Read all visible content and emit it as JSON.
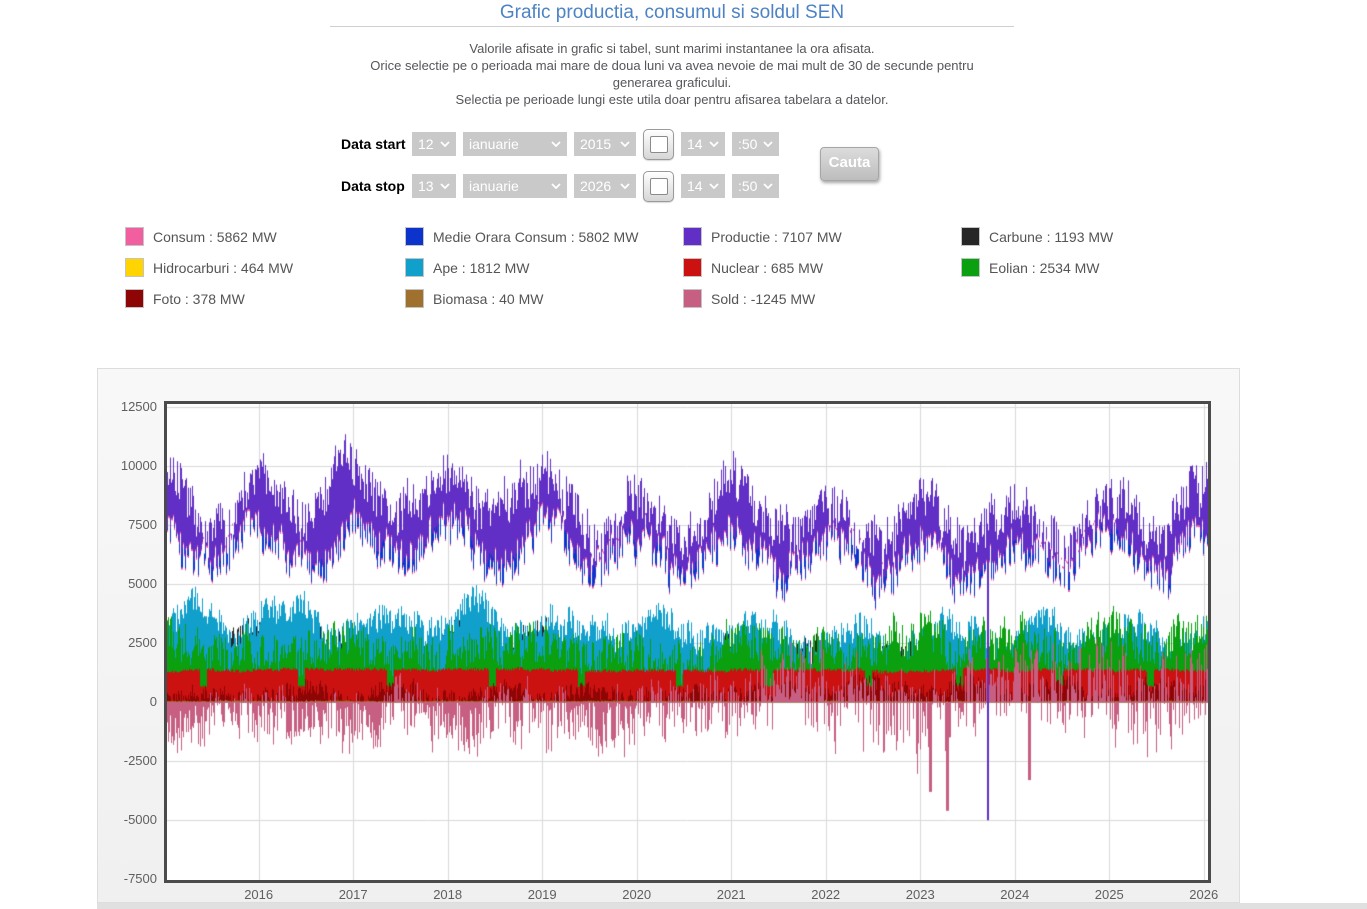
{
  "page": {
    "title": "Grafic productia, consumul si soldul SEN",
    "description_lines": [
      "Valorile afisate in grafic si tabel, sunt marimi instantanee la ora afisata.",
      "Orice selectie pe o perioada mai mare de doua luni va avea nevoie de mai mult de 30 de secunde pentru generarea graficului.",
      "Selectia pe perioade lungi este utila doar pentru afisarea tabelara a datelor."
    ]
  },
  "form": {
    "start_label": "Data start",
    "stop_label": "Data stop",
    "search_label": "Cauta",
    "start": {
      "day": "12",
      "month": "ianuarie",
      "year": "2015",
      "hour": "14",
      "minute": ":50"
    },
    "stop": {
      "day": "13",
      "month": "ianuarie",
      "year": "2026",
      "hour": "14",
      "minute": ":50"
    }
  },
  "chart_data": {
    "type": "area",
    "unit": "MW",
    "legend_position": "top",
    "grid": true,
    "x_range": [
      2015.03,
      2026.045
    ],
    "y_range": [
      -7530,
      12620
    ],
    "y_ticks": [
      12500,
      10000,
      7500,
      5000,
      2500,
      0,
      -2500,
      -5000,
      -7500
    ],
    "x_ticks": [
      2016,
      2017,
      2018,
      2019,
      2020,
      2021,
      2022,
      2023,
      2024,
      2025,
      2026
    ],
    "series": [
      {
        "name": "Consum",
        "color": "#F25FA0",
        "value_mw": 5862
      },
      {
        "name": "Medie Orara Consum",
        "color": "#0C34CC",
        "value_mw": 5802
      },
      {
        "name": "Productie",
        "color": "#612EC6",
        "value_mw": 7107
      },
      {
        "name": "Carbune",
        "color": "#262626",
        "value_mw": 1193
      },
      {
        "name": "Hidrocarburi",
        "color": "#FFD400",
        "value_mw": 464
      },
      {
        "name": "Ape",
        "color": "#119FCC",
        "value_mw": 1812
      },
      {
        "name": "Nuclear",
        "color": "#CC1111",
        "value_mw": 685
      },
      {
        "name": "Eolian",
        "color": "#0AA00F",
        "value_mw": 2534
      },
      {
        "name": "Foto",
        "color": "#8E0505",
        "value_mw": 378
      },
      {
        "name": "Biomasa",
        "color": "#A0702F",
        "value_mw": 40
      },
      {
        "name": "Sold",
        "color": "#C75F82",
        "value_mw": -1245
      }
    ],
    "render": {
      "seed": 20150112,
      "layers": {
        "consum": {
          "base": [
            [
              2015,
              6500
            ],
            [
              2017,
              6700
            ],
            [
              2019,
              6500
            ],
            [
              2020,
              6200
            ],
            [
              2021,
              6400
            ],
            [
              2022,
              6100
            ],
            [
              2023,
              5900
            ],
            [
              2024,
              6000
            ],
            [
              2025,
              6100
            ],
            [
              2026.1,
              6300
            ]
          ],
          "seasonal": 800,
          "phase": 0.02,
          "fast": 850,
          "slow": 420
        },
        "medie": {
          "fast": 240
        },
        "productie": {
          "base": [
            [
              2015,
              8300
            ],
            [
              2016,
              8600
            ],
            [
              2017,
              8900
            ],
            [
              2018,
              8900
            ],
            [
              2019,
              8500
            ],
            [
              2020,
              7900
            ],
            [
              2021,
              8300
            ],
            [
              2022,
              7500
            ],
            [
              2023,
              7200
            ],
            [
              2024,
              7400
            ],
            [
              2025,
              7400
            ],
            [
              2026.1,
              8200
            ]
          ],
          "seasonal": 1050,
          "phase": 0.02,
          "fast": 950,
          "slow": 550
        },
        "carbune": {
          "base": [
            [
              2015,
              2500
            ],
            [
              2017,
              2450
            ],
            [
              2019,
              2200
            ],
            [
              2020,
              2000
            ],
            [
              2021,
              1900
            ],
            [
              2022,
              1700
            ],
            [
              2023,
              1500
            ],
            [
              2024,
              1450
            ],
            [
              2026.1,
              1400
            ]
          ],
          "seasonal": 280,
          "phase": 0.02,
          "fast": 700,
          "slow": 300,
          "min": 0
        },
        "hidrocarburi": {
          "base": [
            [
              2015,
              700
            ],
            [
              2018,
              600
            ],
            [
              2021,
              500
            ],
            [
              2026.1,
              480
            ]
          ],
          "seasonal": 150,
          "phase": 0.02,
          "fast": 500,
          "slow": 250,
          "min": 0
        },
        "ape": {
          "base": [
            [
              2015,
              3400
            ],
            [
              2016,
              3650
            ],
            [
              2017,
              3300
            ],
            [
              2018,
              3550
            ],
            [
              2019,
              3100
            ],
            [
              2020,
              3350
            ],
            [
              2021,
              3150
            ],
            [
              2022,
              2750
            ],
            [
              2023,
              2950
            ],
            [
              2024,
              2750
            ],
            [
              2025,
              2850
            ],
            [
              2026.1,
              3000
            ]
          ],
          "seasonal": 480,
          "phase": 0.28,
          "fast": 600,
          "slow": 380,
          "min": 300
        },
        "eolian": {
          "base": [
            [
              2015,
              2050
            ],
            [
              2018,
              2150
            ],
            [
              2021,
              2250
            ],
            [
              2024,
              2400
            ],
            [
              2026.1,
              2450
            ]
          ],
          "seasonal": 350,
          "phase": 0.0,
          "fast": 850,
          "slow": 450,
          "min": 80
        },
        "nuclear": {
          "base": [
            [
              2015,
              1355
            ],
            [
              2026.1,
              1330
            ]
          ],
          "seasonal": 0,
          "phase": 0,
          "fast": 70,
          "slow": 50,
          "dropout_value": 675,
          "dropouts": [
            [
              2015.38,
              2015.45
            ],
            [
              2016.42,
              2016.49
            ],
            [
              2017.36,
              2017.43
            ],
            [
              2018.44,
              2018.51
            ],
            [
              2019.38,
              2019.45
            ],
            [
              2020.42,
              2020.49
            ],
            [
              2021.36,
              2021.44
            ],
            [
              2022.42,
              2022.49
            ],
            [
              2023.38,
              2023.45
            ],
            [
              2024.44,
              2024.51
            ],
            [
              2025.4,
              2025.47
            ]
          ]
        },
        "foto": {
          "base": [
            [
              2015,
              220
            ],
            [
              2019,
              300
            ],
            [
              2022,
              420
            ],
            [
              2024,
              550
            ],
            [
              2026.1,
              600
            ]
          ],
          "seasonal": 180,
          "phase": 0.5,
          "fast": 380,
          "slow": 150,
          "min": 0
        },
        "biomasa": {
          "base": [
            [
              2015,
              45
            ],
            [
              2026.1,
              42
            ]
          ],
          "seasonal": 0,
          "phase": 0,
          "fast": 18,
          "slow": 8,
          "min": 0
        },
        "sold": {
          "base": [
            [
              2015,
              -850
            ],
            [
              2019,
              -750
            ],
            [
              2020,
              -450
            ],
            [
              2021,
              -100
            ],
            [
              2022,
              350
            ],
            [
              2023,
              50
            ],
            [
              2024,
              400
            ],
            [
              2025,
              250
            ],
            [
              2026.1,
              350
            ]
          ],
          "seasonal": 150,
          "phase": 0.5,
          "fast": [
            [
              2015,
              1050
            ],
            [
              2021,
              1250
            ],
            [
              2022,
              1750
            ],
            [
              2026.1,
              1850
            ]
          ],
          "slow": 550,
          "min": -3400,
          "max": 3050,
          "spikes": [
            {
              "t": 2023.1,
              "v": -3800
            },
            {
              "t": 2023.28,
              "v": -4600
            },
            {
              "t": 2024.15,
              "v": -3300
            }
          ]
        }
      },
      "anomaly": {
        "series": "Productie",
        "t": 2023.72,
        "v": -5000
      }
    }
  }
}
